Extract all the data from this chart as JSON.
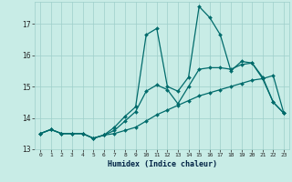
{
  "xlabel": "Humidex (Indice chaleur)",
  "xlim": [
    -0.5,
    23.5
  ],
  "ylim": [
    13.0,
    17.7
  ],
  "yticks": [
    13,
    14,
    15,
    16,
    17
  ],
  "xticks": [
    0,
    1,
    2,
    3,
    4,
    5,
    6,
    7,
    8,
    9,
    10,
    11,
    12,
    13,
    14,
    15,
    16,
    17,
    18,
    19,
    20,
    21,
    22,
    23
  ],
  "bg_color": "#c8ece6",
  "grid_color": "#9ecfca",
  "line_color": "#006b6b",
  "line1_x": [
    0,
    1,
    2,
    3,
    4,
    5,
    6,
    7,
    8,
    9,
    10,
    11,
    12,
    13,
    14,
    15,
    16,
    17,
    18,
    19,
    20,
    21,
    22,
    23
  ],
  "line1_y": [
    13.5,
    13.63,
    13.5,
    13.5,
    13.5,
    13.35,
    13.45,
    13.5,
    13.6,
    13.7,
    13.9,
    14.1,
    14.25,
    14.4,
    14.55,
    14.7,
    14.8,
    14.9,
    15.0,
    15.1,
    15.2,
    15.25,
    15.35,
    14.15
  ],
  "line2_x": [
    0,
    1,
    2,
    3,
    4,
    5,
    6,
    7,
    8,
    9,
    10,
    11,
    12,
    13,
    14,
    15,
    16,
    17,
    18,
    19,
    20,
    21,
    22,
    23
  ],
  "line2_y": [
    13.5,
    13.63,
    13.5,
    13.5,
    13.5,
    13.35,
    13.45,
    13.6,
    13.9,
    14.2,
    14.85,
    15.05,
    14.9,
    14.45,
    15.0,
    15.55,
    15.6,
    15.6,
    15.55,
    15.7,
    15.75,
    15.25,
    14.5,
    14.15
  ],
  "line3_x": [
    0,
    1,
    2,
    3,
    4,
    5,
    6,
    7,
    8,
    9,
    10,
    11,
    12,
    13,
    14,
    15,
    16,
    17,
    18,
    19,
    20,
    21,
    22,
    23
  ],
  "line3_y": [
    13.5,
    13.63,
    13.5,
    13.5,
    13.5,
    13.35,
    13.45,
    13.7,
    14.05,
    14.35,
    16.65,
    16.85,
    15.0,
    14.85,
    15.3,
    17.55,
    17.2,
    16.65,
    15.5,
    15.8,
    15.75,
    15.3,
    14.5,
    14.15
  ],
  "markersize": 2.0,
  "linewidth": 0.9
}
